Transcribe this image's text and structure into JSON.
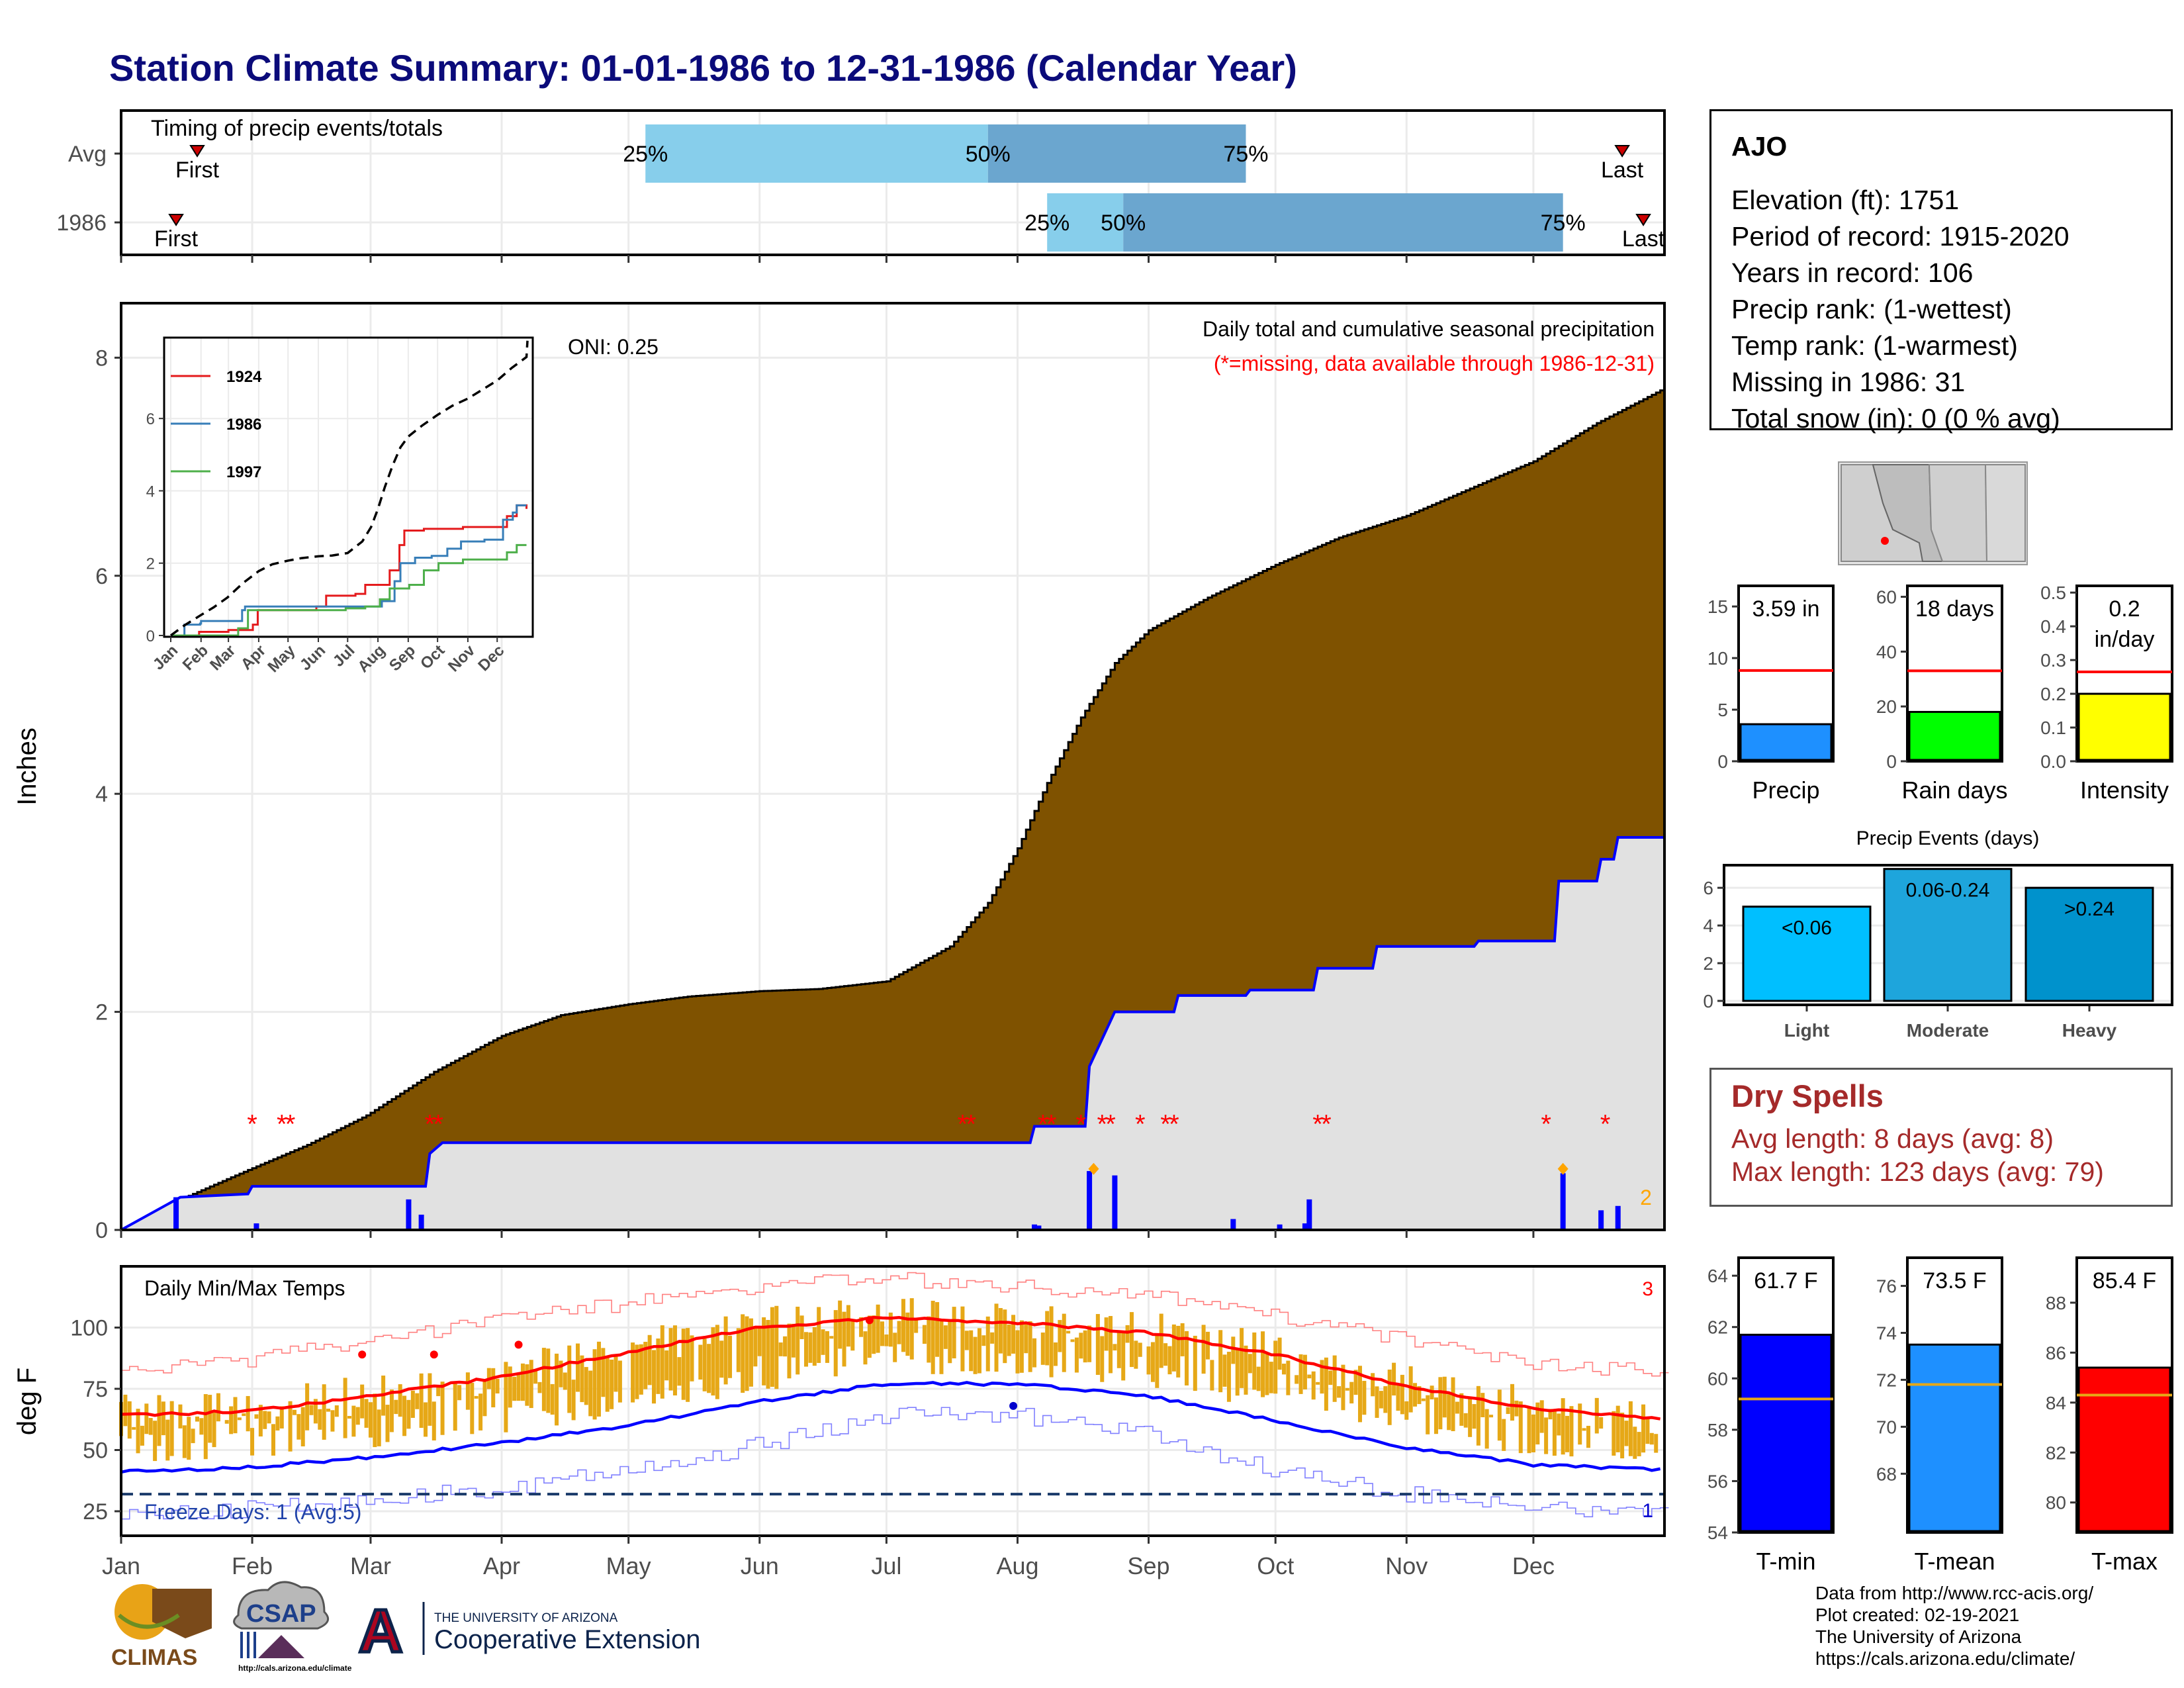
{
  "title": "Station Climate Summary: 01-01-1986 to 12-31-1986 (Calendar Year)",
  "station": {
    "name": "AJO",
    "lines": [
      "Elevation (ft): 1751",
      "Period of record: 1915-2020",
      "Years in record: 106",
      "Precip rank:  (1-wettest)",
      "Temp rank:  (1-warmest)",
      "Missing in 1986: 31",
      "Total snow (in): 0 (0 % avg)"
    ]
  },
  "dry_spells": {
    "heading": "Dry Spells",
    "avg": "Avg length: 8 days (avg: 8)",
    "max": "Max length: 123 days (avg: 79)"
  },
  "credits": [
    "Data from http://www.rcc-acis.org/",
    "Plot created: 02-19-2021",
    "The University of Arizona",
    "https://cals.arizona.edu/climate/"
  ],
  "logos": {
    "climas": "CLIMAS",
    "csap": "CSAP",
    "csap_url": "http://cals.arizona.edu/climate",
    "ua_letter": "A",
    "ua_line1": "THE UNIVERSITY OF ARIZONA",
    "ua_line2": "Cooperative Extension"
  },
  "colors": {
    "cum_avg_fill": "#7f5200",
    "cum_year_fill": "#e1e1e1",
    "year_line": "#0000ff",
    "q_light": "#87ceeb",
    "q_dark": "#6ba6cf",
    "precip_bar": "#1e90ff",
    "raindays_bar": "#00ff00",
    "intensity_bar": "#ffff00",
    "light": "#00bfff",
    "moderate": "#1ea5dc",
    "heavy": "#0092cc",
    "tmin": "#0000ff",
    "tmean": "#1e90ff",
    "tmax": "#ff0000",
    "temp_bar": "#e6a817"
  },
  "chart_data": [
    {
      "type": "timeline",
      "id": "timing",
      "title": "Timing of precip events/totals",
      "rows": [
        {
          "label": "Avg",
          "first": "2024-01-19",
          "q25": "2024-05-04",
          "q50": "2024-07-24",
          "q75": "2024-09-23",
          "last": "2024-12-21"
        },
        {
          "label": "1986",
          "first": "2024-01-14",
          "q25": "2024-08-07",
          "q50": "2024-08-25",
          "q75": "2024-12-07",
          "last": "2024-12-26"
        }
      ],
      "labels": {
        "first": "First",
        "last": "Last",
        "q25": "25%",
        "q50": "50%",
        "q75": "75%"
      }
    },
    {
      "type": "area",
      "id": "precip",
      "title": "Daily total and cumulative seasonal precipitation",
      "subtitle": "(*=missing, data available through 1986-12-31)",
      "annotation": "ONI: 0.25",
      "ylabel": "Inches",
      "ylim": [
        0,
        8.5
      ],
      "yticks": [
        0,
        2,
        4,
        6,
        8
      ],
      "xticks": [
        "Jan",
        "Feb",
        "Mar",
        "Apr",
        "May",
        "Jun",
        "Jul",
        "Aug",
        "Sep",
        "Oct",
        "Nov",
        "Dec"
      ],
      "avg_cumulative": [
        [
          1,
          0
        ],
        [
          15,
          0.28
        ],
        [
          31,
          0.55
        ],
        [
          45,
          0.78
        ],
        [
          59,
          1.05
        ],
        [
          75,
          1.45
        ],
        [
          91,
          1.78
        ],
        [
          105,
          1.97
        ],
        [
          121,
          2.07
        ],
        [
          135,
          2.14
        ],
        [
          152,
          2.19
        ],
        [
          166,
          2.21
        ],
        [
          182,
          2.28
        ],
        [
          197,
          2.6
        ],
        [
          206,
          3.0
        ],
        [
          213,
          3.5
        ],
        [
          220,
          4.1
        ],
        [
          228,
          4.7
        ],
        [
          236,
          5.2
        ],
        [
          244,
          5.5
        ],
        [
          258,
          5.8
        ],
        [
          274,
          6.1
        ],
        [
          289,
          6.35
        ],
        [
          305,
          6.55
        ],
        [
          320,
          6.8
        ],
        [
          335,
          7.05
        ],
        [
          350,
          7.4
        ],
        [
          365,
          7.7
        ]
      ],
      "year_cumulative": [
        [
          1,
          0
        ],
        [
          15,
          0.3
        ],
        [
          31,
          0.33
        ],
        [
          32,
          0.4
        ],
        [
          73,
          0.4
        ],
        [
          74,
          0.7
        ],
        [
          77,
          0.8
        ],
        [
          216,
          0.8
        ],
        [
          217,
          0.95
        ],
        [
          229,
          0.95
        ],
        [
          230,
          1.5
        ],
        [
          236,
          2.0
        ],
        [
          250,
          2.0
        ],
        [
          251,
          2.15
        ],
        [
          267,
          2.15
        ],
        [
          268,
          2.2
        ],
        [
          283,
          2.2
        ],
        [
          284,
          2.4
        ],
        [
          297,
          2.4
        ],
        [
          298,
          2.6
        ],
        [
          321,
          2.6
        ],
        [
          322,
          2.65
        ],
        [
          340,
          2.65
        ],
        [
          341,
          3.2
        ],
        [
          350,
          3.2
        ],
        [
          351,
          3.4
        ],
        [
          354,
          3.4
        ],
        [
          355,
          3.6
        ],
        [
          365,
          3.6
        ]
      ],
      "daily": [
        [
          14,
          0.3
        ],
        [
          33,
          0.06
        ],
        [
          69,
          0.28
        ],
        [
          72,
          0.14
        ],
        [
          217,
          0.05
        ],
        [
          218,
          0.04
        ],
        [
          230,
          0.54
        ],
        [
          236,
          0.5
        ],
        [
          264,
          0.1
        ],
        [
          275,
          0.05
        ],
        [
          281,
          0.06
        ],
        [
          282,
          0.28
        ],
        [
          342,
          0.52
        ],
        [
          351,
          0.18
        ],
        [
          355,
          0.22
        ]
      ],
      "missing": [
        32,
        39,
        41,
        74,
        76,
        200,
        202,
        219,
        221,
        228,
        233,
        235,
        242,
        248,
        250,
        284,
        286,
        338,
        352
      ],
      "snow_marks": [
        231,
        342
      ],
      "corner_label": "2"
    },
    {
      "type": "line",
      "id": "inset",
      "ylim": [
        0,
        8.2
      ],
      "yticks": [
        0,
        2,
        4,
        6
      ],
      "xticks": [
        "Jan",
        "Feb",
        "Mar",
        "Apr",
        "May",
        "Jun",
        "Jul",
        "Aug",
        "Sep",
        "Oct",
        "Nov",
        "Dec"
      ],
      "series": [
        {
          "name": "1924",
          "color": "#e41a1c",
          "points": [
            [
              1,
              0
            ],
            [
              30,
              0.1
            ],
            [
              60,
              0.15
            ],
            [
              85,
              0.3
            ],
            [
              90,
              0.7
            ],
            [
              150,
              0.8
            ],
            [
              160,
              1.1
            ],
            [
              190,
              1.15
            ],
            [
              200,
              1.4
            ],
            [
              225,
              1.8
            ],
            [
              235,
              2.5
            ],
            [
              240,
              2.9
            ],
            [
              255,
              2.9
            ],
            [
              260,
              2.95
            ],
            [
              300,
              3.0
            ],
            [
              330,
              3.0
            ],
            [
              345,
              3.3
            ],
            [
              355,
              3.6
            ],
            [
              365,
              3.5
            ]
          ]
        },
        {
          "name": "1986",
          "color": "#377eb8",
          "points": [
            [
              1,
              0
            ],
            [
              15,
              0.3
            ],
            [
              31,
              0.33
            ],
            [
              32,
              0.4
            ],
            [
              73,
              0.4
            ],
            [
              74,
              0.7
            ],
            [
              77,
              0.8
            ],
            [
              216,
              0.8
            ],
            [
              217,
              0.95
            ],
            [
              229,
              0.95
            ],
            [
              230,
              1.5
            ],
            [
              236,
              2.0
            ],
            [
              250,
              2.0
            ],
            [
              251,
              2.15
            ],
            [
              267,
              2.15
            ],
            [
              268,
              2.2
            ],
            [
              283,
              2.2
            ],
            [
              284,
              2.4
            ],
            [
              297,
              2.4
            ],
            [
              298,
              2.6
            ],
            [
              321,
              2.6
            ],
            [
              322,
              2.65
            ],
            [
              340,
              2.65
            ],
            [
              341,
              3.2
            ],
            [
              350,
              3.2
            ],
            [
              351,
              3.4
            ],
            [
              354,
              3.4
            ],
            [
              355,
              3.6
            ],
            [
              365,
              3.6
            ]
          ]
        },
        {
          "name": "1997",
          "color": "#4daf4a",
          "points": [
            [
              1,
              0
            ],
            [
              70,
              0.2
            ],
            [
              80,
              0.7
            ],
            [
              180,
              0.75
            ],
            [
              200,
              0.8
            ],
            [
              215,
              1.0
            ],
            [
              225,
              1.3
            ],
            [
              245,
              1.4
            ],
            [
              260,
              1.8
            ],
            [
              275,
              2.0
            ],
            [
              300,
              2.1
            ],
            [
              320,
              2.1
            ],
            [
              345,
              2.3
            ],
            [
              355,
              2.5
            ],
            [
              365,
              2.5
            ]
          ]
        }
      ],
      "avg_series": [
        [
          1,
          0
        ],
        [
          15,
          0.28
        ],
        [
          31,
          0.55
        ],
        [
          45,
          0.78
        ],
        [
          59,
          1.05
        ],
        [
          75,
          1.45
        ],
        [
          91,
          1.78
        ],
        [
          105,
          1.97
        ],
        [
          121,
          2.07
        ],
        [
          135,
          2.14
        ],
        [
          152,
          2.19
        ],
        [
          166,
          2.21
        ],
        [
          182,
          2.28
        ],
        [
          197,
          2.6
        ],
        [
          206,
          3.0
        ],
        [
          213,
          3.5
        ],
        [
          220,
          4.1
        ],
        [
          228,
          4.7
        ],
        [
          236,
          5.2
        ],
        [
          244,
          5.5
        ],
        [
          258,
          5.8
        ],
        [
          274,
          6.1
        ],
        [
          289,
          6.35
        ],
        [
          305,
          6.55
        ],
        [
          320,
          6.8
        ],
        [
          335,
          7.05
        ],
        [
          350,
          7.4
        ],
        [
          365,
          7.7
        ]
      ]
    },
    {
      "type": "bar",
      "id": "precip_total",
      "label": "Precip",
      "value_label": "3.59 in",
      "value": 3.59,
      "avg": 8.8,
      "ylim": [
        0,
        17
      ],
      "yticks": [
        0,
        5,
        10,
        15
      ]
    },
    {
      "type": "bar",
      "id": "rain_days",
      "label": "Rain days",
      "value_label": "18 days",
      "value": 18,
      "avg": 33,
      "ylim": [
        0,
        64
      ],
      "yticks": [
        0,
        20,
        40,
        60
      ]
    },
    {
      "type": "bar",
      "id": "intensity",
      "label": "Intensity",
      "value_label_1": "0.2",
      "value_label_2": "in/day",
      "value": 0.2,
      "avg": 0.265,
      "ylim": [
        0,
        0.52
      ],
      "yticks": [
        0.0,
        0.1,
        0.2,
        0.3,
        0.4,
        0.5
      ],
      "yticklabels": [
        "0.0",
        "0.1",
        "0.2",
        "0.3",
        "0.4",
        "0.5"
      ]
    },
    {
      "type": "bar",
      "id": "events",
      "title": "Precip Events (days)",
      "categories": [
        "Light",
        "Moderate",
        "Heavy"
      ],
      "value_labels": [
        "<0.06",
        "0.06-0.24",
        ">0.24"
      ],
      "values": [
        5,
        7,
        6
      ],
      "ylim": [
        0,
        7.2
      ],
      "yticks": [
        0,
        2,
        4,
        6
      ]
    },
    {
      "type": "line",
      "id": "temps",
      "title": "Daily Min/Max Temps",
      "ylabel": "deg F",
      "ylim": [
        15,
        125
      ],
      "yticks": [
        25,
        50,
        75,
        100
      ],
      "xticks": [
        "Jan",
        "Feb",
        "Mar",
        "Apr",
        "May",
        "Jun",
        "Jul",
        "Aug",
        "Sep",
        "Oct",
        "Nov",
        "Dec"
      ],
      "freeze_text": "Freeze Days: 1 (Avg:5)",
      "freeze_line": 32,
      "count_top": "3",
      "count_bottom": "1",
      "avg_max": [
        [
          1,
          64
        ],
        [
          32,
          66
        ],
        [
          60,
          72
        ],
        [
          91,
          80
        ],
        [
          121,
          90
        ],
        [
          152,
          100
        ],
        [
          182,
          104
        ],
        [
          213,
          102
        ],
        [
          244,
          98
        ],
        [
          274,
          89
        ],
        [
          305,
          76
        ],
        [
          335,
          67
        ],
        [
          365,
          63
        ]
      ],
      "avg_min": [
        [
          1,
          41
        ],
        [
          32,
          43
        ],
        [
          60,
          47
        ],
        [
          91,
          53
        ],
        [
          121,
          60
        ],
        [
          152,
          70
        ],
        [
          182,
          77
        ],
        [
          213,
          77
        ],
        [
          244,
          72
        ],
        [
          274,
          62
        ],
        [
          305,
          51
        ],
        [
          335,
          44
        ],
        [
          365,
          42
        ]
      ],
      "rec_max": [
        [
          1,
          82
        ],
        [
          32,
          87
        ],
        [
          60,
          95
        ],
        [
          91,
          103
        ],
        [
          121,
          110
        ],
        [
          152,
          117
        ],
        [
          182,
          120
        ],
        [
          213,
          117
        ],
        [
          244,
          113
        ],
        [
          274,
          105
        ],
        [
          305,
          95
        ],
        [
          335,
          85
        ],
        [
          365,
          82
        ]
      ],
      "rec_min": [
        [
          1,
          24
        ],
        [
          32,
          26
        ],
        [
          60,
          30
        ],
        [
          91,
          34
        ],
        [
          121,
          42
        ],
        [
          152,
          52
        ],
        [
          182,
          64
        ],
        [
          213,
          64
        ],
        [
          244,
          56
        ],
        [
          274,
          42
        ],
        [
          305,
          32
        ],
        [
          335,
          26
        ],
        [
          365,
          24
        ]
      ],
      "record_marks": [
        [
          58,
          89
        ],
        [
          75,
          89
        ],
        [
          95,
          93
        ],
        [
          178,
          103
        ],
        [
          212,
          68
        ]
      ]
    },
    {
      "type": "bar",
      "id": "tmin",
      "label": "T-min",
      "value_label": "61.7 F",
      "value": 61.7,
      "avg": 59.2,
      "ylim": [
        54,
        64.7
      ],
      "yticks": [
        54,
        56,
        58,
        60,
        62,
        64
      ]
    },
    {
      "type": "bar",
      "id": "tmean",
      "label": "T-mean",
      "value_label": "73.5 F",
      "value": 73.5,
      "avg": 71.8,
      "ylim": [
        65.5,
        77.2
      ],
      "yticks": [
        68,
        70,
        72,
        74,
        76
      ]
    },
    {
      "type": "bar",
      "id": "tmax",
      "label": "T-max",
      "value_label": "85.4 F",
      "value": 85.4,
      "avg": 84.3,
      "ylim": [
        78.8,
        89.8
      ],
      "yticks": [
        80,
        82,
        84,
        86,
        88
      ]
    }
  ]
}
